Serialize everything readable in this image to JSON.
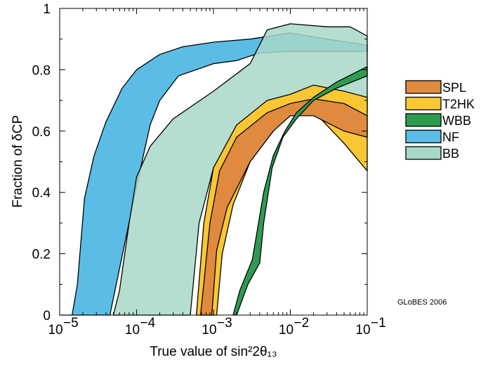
{
  "chart_data": {
    "type": "area",
    "xlabel": "True value of sin²2θ₁₃",
    "ylabel": "Fraction of δCP",
    "x_scale": "log",
    "xlim": [
      1e-05,
      0.1
    ],
    "ylim": [
      0,
      1
    ],
    "x_ticks": [
      {
        "value": 1e-05,
        "base": "10",
        "exp": "−5"
      },
      {
        "value": 0.0001,
        "base": "10",
        "exp": "−4"
      },
      {
        "value": 0.001,
        "base": "10",
        "exp": "−3"
      },
      {
        "value": 0.01,
        "base": "10",
        "exp": "−2"
      },
      {
        "value": 0.1,
        "base": "10",
        "exp": "−1"
      }
    ],
    "y_ticks": [
      "0",
      "0.2",
      "0.4",
      "0.6",
      "0.8",
      "1"
    ],
    "y_tick_values": [
      0,
      0.2,
      0.4,
      0.6,
      0.8,
      1
    ],
    "grid": false,
    "legend_position": "right",
    "annotation": "GLoBES 2006",
    "series": [
      {
        "name": "NF",
        "color": "#5bbde6",
        "opacity": 1,
        "upper": [
          [
            1e-05,
            0
          ],
          [
            1.45e-05,
            0
          ],
          [
            1.7e-05,
            0.1
          ],
          [
            2.1e-05,
            0.38
          ],
          [
            2.8e-05,
            0.52
          ],
          [
            4e-05,
            0.63
          ],
          [
            6.5e-05,
            0.74
          ],
          [
            0.0001,
            0.8
          ],
          [
            0.0002,
            0.85
          ],
          [
            0.0004,
            0.875
          ],
          [
            0.001,
            0.89
          ],
          [
            0.003,
            0.9
          ],
          [
            0.01,
            0.92
          ],
          [
            0.03,
            0.9
          ],
          [
            0.1,
            0.88
          ]
        ],
        "lower": [
          [
            1e-05,
            0
          ],
          [
            3e-05,
            0
          ],
          [
            4.5e-05,
            0
          ],
          [
            0.0001,
            0.42
          ],
          [
            0.00015,
            0.62
          ],
          [
            0.0002,
            0.7
          ],
          [
            0.00035,
            0.78
          ],
          [
            0.001,
            0.82
          ],
          [
            0.002,
            0.83
          ],
          [
            0.004,
            0.855
          ],
          [
            0.01,
            0.86
          ],
          [
            0.03,
            0.86
          ],
          [
            0.1,
            0.86
          ]
        ]
      },
      {
        "name": "BB",
        "color": "#a8d8c8",
        "opacity": 0.85,
        "upper": [
          [
            5e-05,
            0
          ],
          [
            6e-05,
            0.08
          ],
          [
            8e-05,
            0.3
          ],
          [
            0.0001,
            0.45
          ],
          [
            0.00015,
            0.55
          ],
          [
            0.0003,
            0.64
          ],
          [
            0.001,
            0.73
          ],
          [
            0.003,
            0.82
          ],
          [
            0.005,
            0.93
          ],
          [
            0.01,
            0.95
          ],
          [
            0.03,
            0.94
          ],
          [
            0.06,
            0.94
          ],
          [
            0.1,
            0.91
          ]
        ],
        "lower": [
          [
            5e-05,
            0
          ],
          [
            0.0005,
            0
          ],
          [
            0.00065,
            0.3
          ],
          [
            0.001,
            0.48
          ],
          [
            0.002,
            0.6
          ],
          [
            0.005,
            0.66
          ],
          [
            0.01,
            0.68
          ],
          [
            0.02,
            0.68
          ],
          [
            0.05,
            0.67
          ],
          [
            0.1,
            0.66
          ]
        ]
      },
      {
        "name": "T2HK",
        "color": "#f9c733",
        "opacity": 1,
        "upper": [
          [
            0.0006,
            0
          ],
          [
            0.00075,
            0.3
          ],
          [
            0.001,
            0.48
          ],
          [
            0.002,
            0.62
          ],
          [
            0.005,
            0.7
          ],
          [
            0.01,
            0.72
          ],
          [
            0.02,
            0.75
          ],
          [
            0.05,
            0.73
          ],
          [
            0.1,
            0.71
          ]
        ],
        "lower": [
          [
            0.0006,
            0
          ],
          [
            0.0011,
            0
          ],
          [
            0.0013,
            0.2
          ],
          [
            0.0018,
            0.36
          ],
          [
            0.003,
            0.5
          ],
          [
            0.006,
            0.6
          ],
          [
            0.01,
            0.66
          ],
          [
            0.02,
            0.665
          ],
          [
            0.05,
            0.56
          ],
          [
            0.1,
            0.47
          ]
        ]
      },
      {
        "name": "SPL",
        "color": "#e08a40",
        "opacity": 1,
        "upper": [
          [
            0.00068,
            0
          ],
          [
            0.0009,
            0.3
          ],
          [
            0.0012,
            0.47
          ],
          [
            0.002,
            0.58
          ],
          [
            0.005,
            0.66
          ],
          [
            0.01,
            0.69
          ],
          [
            0.02,
            0.705
          ],
          [
            0.05,
            0.69
          ],
          [
            0.1,
            0.65
          ]
        ],
        "lower": [
          [
            0.00068,
            0
          ],
          [
            0.00095,
            0
          ],
          [
            0.0011,
            0.21
          ],
          [
            0.0015,
            0.35
          ],
          [
            0.003,
            0.5
          ],
          [
            0.006,
            0.6
          ],
          [
            0.01,
            0.65
          ],
          [
            0.02,
            0.65
          ],
          [
            0.05,
            0.6
          ],
          [
            0.1,
            0.58
          ]
        ]
      },
      {
        "name": "WBB",
        "color": "#2e9c50",
        "opacity": 1,
        "upper": [
          [
            0.0018,
            0
          ],
          [
            0.0022,
            0.08
          ],
          [
            0.0032,
            0.18
          ],
          [
            0.0045,
            0.4
          ],
          [
            0.006,
            0.52
          ],
          [
            0.0085,
            0.6
          ],
          [
            0.012,
            0.66
          ],
          [
            0.02,
            0.71
          ],
          [
            0.04,
            0.76
          ],
          [
            0.1,
            0.81
          ]
        ],
        "lower": [
          [
            0.0018,
            0
          ],
          [
            0.002,
            0
          ],
          [
            0.0028,
            0.1
          ],
          [
            0.004,
            0.17
          ],
          [
            0.0045,
            0.3
          ],
          [
            0.0058,
            0.48
          ],
          [
            0.008,
            0.58
          ],
          [
            0.012,
            0.64
          ],
          [
            0.02,
            0.7
          ],
          [
            0.04,
            0.74
          ],
          [
            0.1,
            0.78
          ]
        ]
      }
    ]
  },
  "legend": [
    {
      "label": "SPL",
      "color": "#e08a40"
    },
    {
      "label": "T2HK",
      "color": "#f9c733"
    },
    {
      "label": "WBB",
      "color": "#2e9c50"
    },
    {
      "label": "NF",
      "color": "#5bbde6"
    },
    {
      "label": "BB",
      "color": "#a8d8c8"
    }
  ]
}
